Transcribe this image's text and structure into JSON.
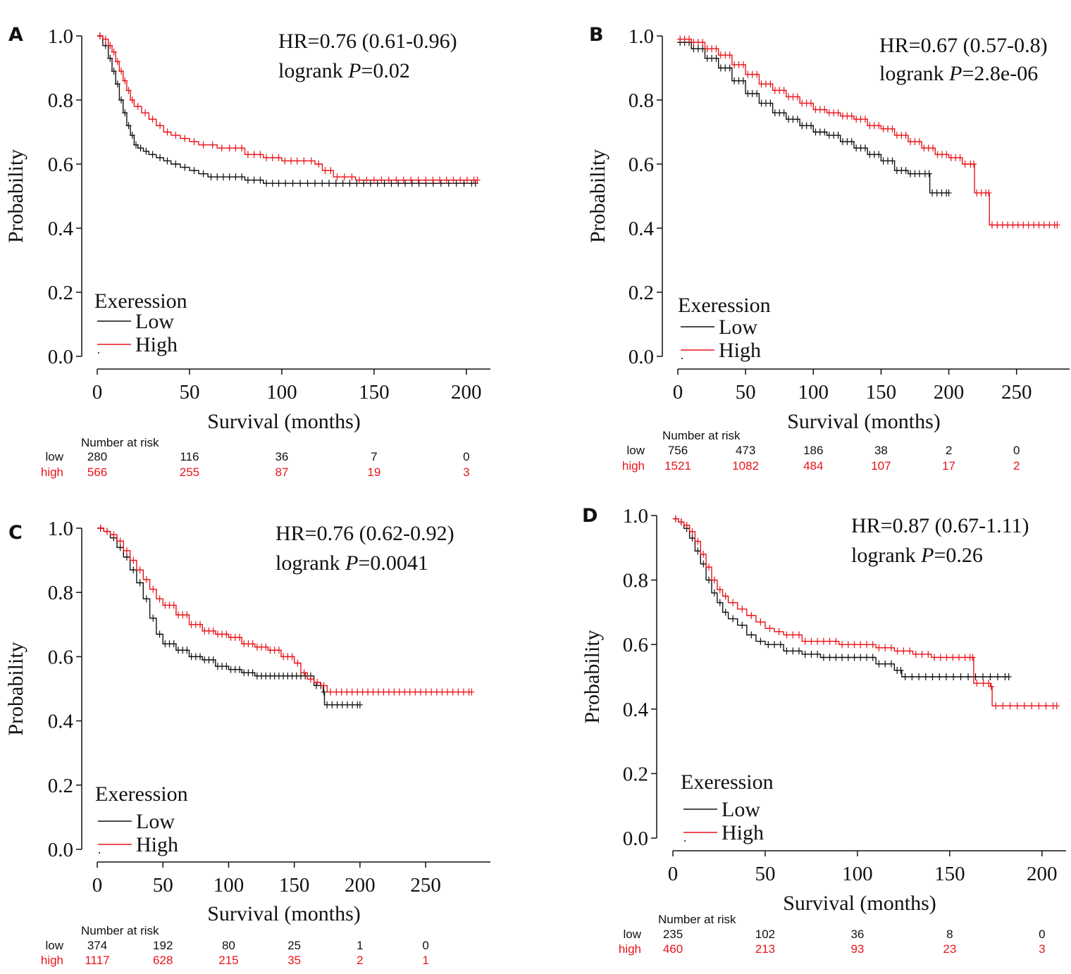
{
  "colors": {
    "low": "#111111",
    "high": "#e8141a"
  },
  "chart_data": [
    {
      "type": "line",
      "panel": "A",
      "ylabel": "Probability",
      "xlabel": "Survival (months)",
      "xlim": [
        0,
        210
      ],
      "ylim": [
        0,
        1
      ],
      "xticks": [
        0,
        50,
        100,
        150,
        200
      ],
      "yticks": [
        "0.0",
        "0.2",
        "0.4",
        "0.6",
        "0.8",
        "1.0"
      ],
      "stats": {
        "hr": "HR=0.76 (0.61-0.96)",
        "p_prefix": "logrank ",
        "p_italic": "P",
        "p_suffix": "=0.02"
      },
      "legend": {
        "title": "Exeression",
        "labels": [
          "Low",
          "High"
        ]
      },
      "series": [
        {
          "name": "Low",
          "x": [
            0,
            3,
            6,
            8,
            10,
            12,
            14,
            16,
            18,
            20,
            22,
            25,
            28,
            32,
            36,
            40,
            45,
            50,
            55,
            60,
            70,
            80,
            90,
            100,
            120,
            150,
            180,
            205
          ],
          "y": [
            1.0,
            0.97,
            0.93,
            0.89,
            0.85,
            0.8,
            0.76,
            0.72,
            0.69,
            0.66,
            0.65,
            0.64,
            0.63,
            0.62,
            0.61,
            0.6,
            0.59,
            0.58,
            0.57,
            0.56,
            0.56,
            0.55,
            0.54,
            0.54,
            0.54,
            0.54,
            0.54,
            0.54
          ]
        },
        {
          "name": "High",
          "x": [
            0,
            3,
            6,
            8,
            10,
            12,
            14,
            16,
            18,
            20,
            24,
            28,
            32,
            36,
            40,
            45,
            50,
            55,
            60,
            65,
            70,
            80,
            90,
            100,
            110,
            118,
            122,
            128,
            140,
            160,
            180,
            206
          ],
          "y": [
            1.0,
            0.99,
            0.97,
            0.95,
            0.92,
            0.89,
            0.86,
            0.83,
            0.8,
            0.78,
            0.76,
            0.74,
            0.72,
            0.7,
            0.69,
            0.68,
            0.67,
            0.66,
            0.66,
            0.65,
            0.65,
            0.63,
            0.62,
            0.61,
            0.61,
            0.6,
            0.58,
            0.56,
            0.55,
            0.55,
            0.55,
            0.55
          ]
        }
      ],
      "risk": {
        "header": "Number at risk",
        "low_label": "low",
        "high_label": "high",
        "x": [
          0,
          50,
          100,
          150,
          200
        ],
        "low": [
          "280",
          "116",
          "36",
          "7",
          "0"
        ],
        "high": [
          "566",
          "255",
          "87",
          "19",
          "3"
        ]
      }
    },
    {
      "type": "line",
      "panel": "B",
      "ylabel": "Probability",
      "xlabel": "Survival (months)",
      "xlim": [
        0,
        285
      ],
      "ylim": [
        0,
        1
      ],
      "xticks": [
        0,
        50,
        100,
        150,
        200,
        250
      ],
      "yticks": [
        "0.0",
        "0.2",
        "0.4",
        "0.6",
        "0.8",
        "1.0"
      ],
      "stats": {
        "hr": "HR=0.67 (0.57-0.8)",
        "p_prefix": "logrank ",
        "p_italic": "P",
        "p_suffix": "=2.8e-06"
      },
      "legend": {
        "title": "Exeression",
        "labels": [
          "Low",
          "High"
        ]
      },
      "series": [
        {
          "name": "Low",
          "x": [
            0,
            10,
            20,
            30,
            40,
            50,
            60,
            70,
            80,
            90,
            100,
            110,
            120,
            130,
            140,
            150,
            160,
            170,
            180,
            185,
            186,
            200
          ],
          "y": [
            0.98,
            0.96,
            0.93,
            0.9,
            0.86,
            0.82,
            0.79,
            0.76,
            0.74,
            0.72,
            0.7,
            0.69,
            0.67,
            0.65,
            0.63,
            0.61,
            0.58,
            0.57,
            0.57,
            0.57,
            0.51,
            0.51
          ]
        },
        {
          "name": "High",
          "x": [
            0,
            10,
            20,
            30,
            40,
            50,
            60,
            70,
            80,
            90,
            100,
            110,
            120,
            130,
            140,
            150,
            160,
            170,
            180,
            190,
            200,
            210,
            218,
            219,
            229,
            230,
            280
          ],
          "y": [
            0.99,
            0.98,
            0.96,
            0.94,
            0.91,
            0.88,
            0.85,
            0.83,
            0.81,
            0.79,
            0.77,
            0.76,
            0.75,
            0.74,
            0.72,
            0.71,
            0.69,
            0.67,
            0.65,
            0.63,
            0.62,
            0.6,
            0.6,
            0.51,
            0.51,
            0.41,
            0.41
          ]
        }
      ],
      "risk": {
        "header": "Number at risk",
        "low_label": "low",
        "high_label": "high",
        "x": [
          0,
          50,
          100,
          150,
          200,
          250
        ],
        "low": [
          "756",
          "473",
          "186",
          "38",
          "2",
          "0"
        ],
        "high": [
          "1521",
          "1082",
          "484",
          "107",
          "17",
          "2"
        ]
      }
    },
    {
      "type": "line",
      "panel": "C",
      "ylabel": "Probability",
      "xlabel": "Survival (months)",
      "xlim": [
        0,
        295
      ],
      "ylim": [
        0,
        1
      ],
      "xticks": [
        0,
        50,
        100,
        150,
        200,
        250
      ],
      "yticks": [
        "0.0",
        "0.2",
        "0.4",
        "0.6",
        "0.8",
        "1.0"
      ],
      "stats": {
        "hr": "HR=0.76 (0.62-0.92)",
        "p_prefix": "logrank ",
        "p_italic": "P",
        "p_suffix": "=0.0041"
      },
      "legend": {
        "title": "Exeression",
        "labels": [
          "Low",
          "High"
        ]
      },
      "series": [
        {
          "name": "Low",
          "x": [
            0,
            5,
            10,
            15,
            20,
            25,
            30,
            35,
            40,
            45,
            50,
            60,
            70,
            80,
            90,
            100,
            110,
            120,
            130,
            140,
            150,
            160,
            165,
            172,
            173,
            200
          ],
          "y": [
            1.0,
            0.99,
            0.97,
            0.94,
            0.91,
            0.87,
            0.83,
            0.78,
            0.72,
            0.67,
            0.64,
            0.62,
            0.6,
            0.59,
            0.57,
            0.56,
            0.55,
            0.54,
            0.54,
            0.54,
            0.54,
            0.54,
            0.51,
            0.49,
            0.45,
            0.45
          ]
        },
        {
          "name": "High",
          "x": [
            0,
            5,
            10,
            15,
            20,
            25,
            30,
            35,
            40,
            45,
            50,
            60,
            70,
            80,
            90,
            100,
            110,
            120,
            130,
            140,
            150,
            155,
            160,
            165,
            170,
            175,
            180,
            240,
            285
          ],
          "y": [
            1.0,
            0.99,
            0.98,
            0.96,
            0.93,
            0.9,
            0.87,
            0.84,
            0.81,
            0.78,
            0.76,
            0.73,
            0.7,
            0.68,
            0.67,
            0.66,
            0.64,
            0.63,
            0.62,
            0.6,
            0.58,
            0.55,
            0.53,
            0.52,
            0.51,
            0.49,
            0.49,
            0.49,
            0.49
          ]
        }
      ],
      "risk": {
        "header": "Number at risk",
        "low_label": "low",
        "high_label": "high",
        "x": [
          0,
          50,
          100,
          150,
          200,
          250
        ],
        "low": [
          "374",
          "192",
          "80",
          "25",
          "1",
          "0"
        ],
        "high": [
          "1117",
          "628",
          "215",
          "35",
          "2",
          "1"
        ]
      }
    },
    {
      "type": "line",
      "panel": "D",
      "ylabel": "Probability",
      "xlabel": "Survival (months)",
      "xlim": [
        0,
        210
      ],
      "ylim": [
        0,
        1
      ],
      "xticks": [
        0,
        50,
        100,
        150,
        200
      ],
      "yticks": [
        "0.0",
        "0.2",
        "0.4",
        "0.6",
        "0.8",
        "1.0"
      ],
      "stats": {
        "hr": "HR=0.87 (0.67-1.11)",
        "p_prefix": "logrank ",
        "p_italic": "P",
        "p_suffix": "=0.26"
      },
      "legend": {
        "title": "Exeression",
        "labels": [
          "Low",
          "High"
        ]
      },
      "series": [
        {
          "name": "Low",
          "x": [
            0,
            3,
            6,
            9,
            12,
            15,
            18,
            21,
            24,
            27,
            30,
            35,
            40,
            45,
            50,
            60,
            70,
            80,
            90,
            100,
            110,
            120,
            123,
            124,
            150,
            182
          ],
          "y": [
            0.99,
            0.98,
            0.96,
            0.93,
            0.89,
            0.85,
            0.8,
            0.76,
            0.73,
            0.7,
            0.68,
            0.66,
            0.63,
            0.61,
            0.6,
            0.58,
            0.57,
            0.56,
            0.56,
            0.56,
            0.54,
            0.52,
            0.52,
            0.5,
            0.5,
            0.5
          ]
        },
        {
          "name": "High",
          "x": [
            0,
            3,
            6,
            9,
            12,
            15,
            18,
            21,
            24,
            27,
            30,
            35,
            40,
            45,
            50,
            55,
            60,
            70,
            80,
            90,
            100,
            110,
            120,
            130,
            140,
            150,
            160,
            162,
            163,
            170,
            172,
            173,
            208
          ],
          "y": [
            0.99,
            0.98,
            0.97,
            0.95,
            0.92,
            0.88,
            0.84,
            0.8,
            0.77,
            0.75,
            0.73,
            0.71,
            0.69,
            0.67,
            0.65,
            0.64,
            0.63,
            0.61,
            0.61,
            0.6,
            0.6,
            0.59,
            0.58,
            0.57,
            0.56,
            0.56,
            0.56,
            0.56,
            0.48,
            0.48,
            0.47,
            0.41,
            0.41
          ]
        }
      ],
      "risk": {
        "header": "Number at risk",
        "low_label": "low",
        "high_label": "high",
        "x": [
          0,
          50,
          100,
          150,
          200
        ],
        "low": [
          "235",
          "102",
          "36",
          "8",
          "0"
        ],
        "high": [
          "460",
          "213",
          "93",
          "23",
          "3"
        ]
      }
    }
  ]
}
